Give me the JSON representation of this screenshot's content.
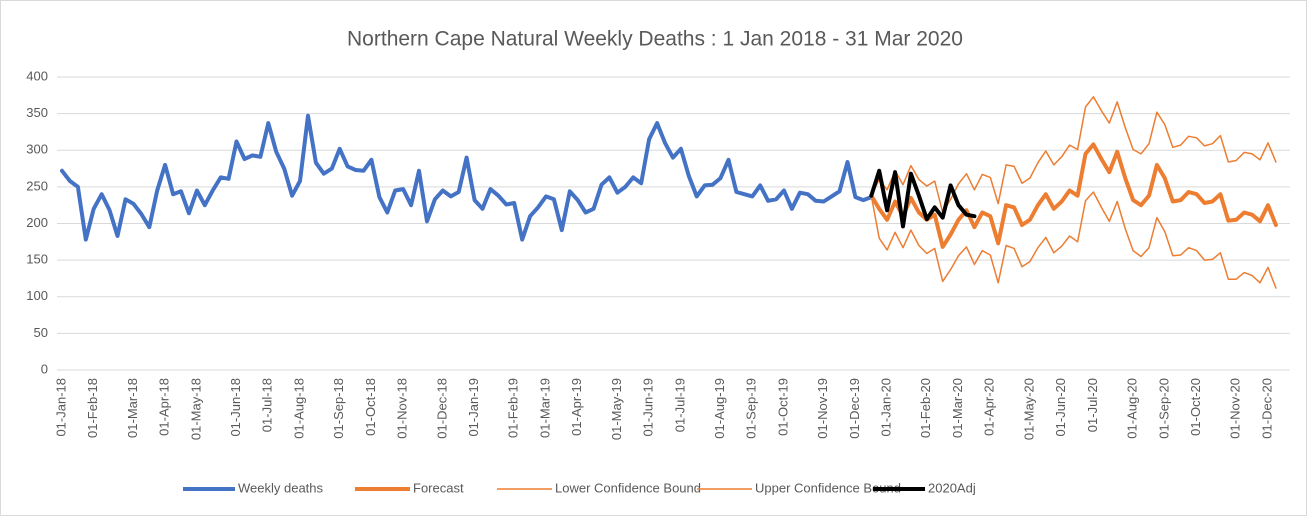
{
  "chart_data": {
    "type": "line",
    "title": "Northern Cape Natural Weekly Deaths : 1 Jan 2018 - 31 Mar 2020",
    "categories": [
      "01-Jan-18",
      null,
      null,
      null,
      "01-Feb-18",
      null,
      null,
      null,
      null,
      "01-Mar-18",
      null,
      null,
      null,
      "01-Apr-18",
      null,
      null,
      null,
      "01-May-18",
      null,
      null,
      null,
      null,
      "01-Jun-18",
      null,
      null,
      null,
      "01-Jul-18",
      null,
      null,
      null,
      "01-Aug-18",
      null,
      null,
      null,
      null,
      "01-Sep-18",
      null,
      null,
      null,
      "01-Oct-18",
      null,
      null,
      null,
      "01-Nov-18",
      null,
      null,
      null,
      null,
      "01-Dec-18",
      null,
      null,
      null,
      "01-Jan-19",
      null,
      null,
      null,
      null,
      "01-Feb-19",
      null,
      null,
      null,
      "01-Mar-19",
      null,
      null,
      null,
      "01-Apr-19",
      null,
      null,
      null,
      null,
      "01-May-19",
      null,
      null,
      null,
      "01-Jun-19",
      null,
      null,
      null,
      "01-Jul-19",
      null,
      null,
      null,
      null,
      "01-Aug-19",
      null,
      null,
      null,
      "01-Sep-19",
      null,
      null,
      null,
      "01-Oct-19",
      null,
      null,
      null,
      null,
      "01-Nov-19",
      null,
      null,
      null,
      "01-Dec-19",
      null,
      null,
      null,
      "01-Jan-20",
      null,
      null,
      null,
      null,
      "01-Feb-20",
      null,
      null,
      null,
      "01-Mar-20",
      null,
      null,
      null,
      "01-Apr-20",
      null,
      null,
      null,
      null,
      "01-May-20",
      null,
      null,
      null,
      "01-Jun-20",
      null,
      null,
      null,
      "01-Jul-20",
      null,
      null,
      null,
      null,
      "01-Aug-20",
      null,
      null,
      null,
      "01-Sep-20",
      null,
      null,
      null,
      "01-Oct-20",
      null,
      null,
      null,
      null,
      "01-Nov-20",
      null,
      null,
      null,
      "01-Dec-20",
      null
    ],
    "series": [
      {
        "name": "Weekly deaths",
        "color": "#4472c4",
        "width": 4,
        "values": [
          272,
          258,
          250,
          178,
          220,
          240,
          218,
          183,
          233,
          227,
          213,
          195,
          245,
          280,
          240,
          244,
          214,
          245,
          225,
          245,
          263,
          261,
          312,
          288,
          293,
          291,
          337,
          298,
          275,
          238,
          258,
          347,
          283,
          268,
          275,
          302,
          278,
          273,
          272,
          287,
          236,
          215,
          245,
          247,
          225,
          272,
          203,
          233,
          245,
          237,
          243,
          290,
          232,
          220,
          247,
          238,
          226,
          228,
          178,
          210,
          222,
          237,
          233,
          191,
          244,
          232,
          215,
          220,
          253,
          263,
          242,
          250,
          263,
          255,
          315,
          337,
          310,
          290,
          302,
          265,
          237,
          252,
          253,
          262,
          287,
          243,
          240,
          237,
          252,
          231,
          233,
          245,
          220,
          242,
          240,
          231,
          230,
          237,
          244,
          284,
          236,
          232,
          236,
          null,
          null,
          null,
          null,
          null,
          null,
          null,
          null,
          null,
          null,
          null,
          null,
          null,
          null,
          null,
          null,
          null,
          null,
          null,
          null,
          null,
          null,
          null,
          null,
          null,
          null,
          null,
          null,
          null,
          null,
          null,
          null,
          null,
          null,
          null,
          null,
          null,
          null,
          null,
          null,
          null,
          null,
          null,
          null,
          null,
          null,
          null,
          null,
          null,
          null,
          null
        ]
      },
      {
        "name": "Forecast",
        "color": "#ed7d31",
        "width": 4,
        "values": [
          null,
          null,
          null,
          null,
          null,
          null,
          null,
          null,
          null,
          null,
          null,
          null,
          null,
          null,
          null,
          null,
          null,
          null,
          null,
          null,
          null,
          null,
          null,
          null,
          null,
          null,
          null,
          null,
          null,
          null,
          null,
          null,
          null,
          null,
          null,
          null,
          null,
          null,
          null,
          null,
          null,
          null,
          null,
          null,
          null,
          null,
          null,
          null,
          null,
          null,
          null,
          null,
          null,
          null,
          null,
          null,
          null,
          null,
          null,
          null,
          null,
          null,
          null,
          null,
          null,
          null,
          null,
          null,
          null,
          null,
          null,
          null,
          null,
          null,
          null,
          null,
          null,
          null,
          null,
          null,
          null,
          null,
          null,
          null,
          null,
          null,
          null,
          null,
          null,
          null,
          null,
          null,
          null,
          null,
          null,
          null,
          null,
          null,
          null,
          null,
          null,
          null,
          238,
          220,
          205,
          230,
          210,
          235,
          215,
          205,
          212,
          168,
          185,
          205,
          218,
          195,
          215,
          210,
          173,
          225,
          222,
          198,
          205,
          225,
          240,
          220,
          230,
          245,
          238,
          295,
          308,
          288,
          270,
          298,
          262,
          232,
          225,
          238,
          280,
          262,
          230,
          232,
          243,
          240,
          228,
          230,
          240,
          204,
          205,
          215,
          212,
          203,
          225,
          198
        ]
      },
      {
        "name": "Lower Confidence Bound",
        "color": "#ed7d31",
        "width": 1.5,
        "values": [
          null,
          null,
          null,
          null,
          null,
          null,
          null,
          null,
          null,
          null,
          null,
          null,
          null,
          null,
          null,
          null,
          null,
          null,
          null,
          null,
          null,
          null,
          null,
          null,
          null,
          null,
          null,
          null,
          null,
          null,
          null,
          null,
          null,
          null,
          null,
          null,
          null,
          null,
          null,
          null,
          null,
          null,
          null,
          null,
          null,
          null,
          null,
          null,
          null,
          null,
          null,
          null,
          null,
          null,
          null,
          null,
          null,
          null,
          null,
          null,
          null,
          null,
          null,
          null,
          null,
          null,
          null,
          null,
          null,
          null,
          null,
          null,
          null,
          null,
          null,
          null,
          null,
          null,
          null,
          null,
          null,
          null,
          null,
          null,
          null,
          null,
          null,
          null,
          null,
          null,
          null,
          null,
          null,
          null,
          null,
          null,
          null,
          null,
          null,
          null,
          null,
          null,
          238,
          180,
          164,
          188,
          167,
          191,
          170,
          159,
          166,
          121,
          137,
          156,
          168,
          144,
          163,
          157,
          119,
          170,
          166,
          141,
          148,
          167,
          181,
          160,
          169,
          183,
          175,
          231,
          243,
          222,
          203,
          230,
          193,
          163,
          155,
          167,
          208,
          189,
          156,
          157,
          167,
          163,
          150,
          151,
          160,
          124,
          124,
          133,
          129,
          119,
          140,
          112
        ]
      },
      {
        "name": "Upper Confidence Bound",
        "color": "#ed7d31",
        "width": 1.5,
        "values": [
          null,
          null,
          null,
          null,
          null,
          null,
          null,
          null,
          null,
          null,
          null,
          null,
          null,
          null,
          null,
          null,
          null,
          null,
          null,
          null,
          null,
          null,
          null,
          null,
          null,
          null,
          null,
          null,
          null,
          null,
          null,
          null,
          null,
          null,
          null,
          null,
          null,
          null,
          null,
          null,
          null,
          null,
          null,
          null,
          null,
          null,
          null,
          null,
          null,
          null,
          null,
          null,
          null,
          null,
          null,
          null,
          null,
          null,
          null,
          null,
          null,
          null,
          null,
          null,
          null,
          null,
          null,
          null,
          null,
          null,
          null,
          null,
          null,
          null,
          null,
          null,
          null,
          null,
          null,
          null,
          null,
          null,
          null,
          null,
          null,
          null,
          null,
          null,
          null,
          null,
          null,
          null,
          null,
          null,
          null,
          null,
          null,
          null,
          null,
          null,
          null,
          null,
          238,
          260,
          246,
          272,
          253,
          279,
          260,
          251,
          258,
          215,
          233,
          254,
          268,
          246,
          267,
          263,
          227,
          280,
          278,
          255,
          262,
          283,
          299,
          280,
          291,
          307,
          301,
          359,
          373,
          354,
          337,
          366,
          331,
          301,
          295,
          309,
          352,
          335,
          304,
          307,
          319,
          317,
          306,
          309,
          320,
          284,
          286,
          297,
          295,
          287,
          310,
          284
        ]
      },
      {
        "name": "2020Adj",
        "color": "#000000",
        "width": 4,
        "values": [
          null,
          null,
          null,
          null,
          null,
          null,
          null,
          null,
          null,
          null,
          null,
          null,
          null,
          null,
          null,
          null,
          null,
          null,
          null,
          null,
          null,
          null,
          null,
          null,
          null,
          null,
          null,
          null,
          null,
          null,
          null,
          null,
          null,
          null,
          null,
          null,
          null,
          null,
          null,
          null,
          null,
          null,
          null,
          null,
          null,
          null,
          null,
          null,
          null,
          null,
          null,
          null,
          null,
          null,
          null,
          null,
          null,
          null,
          null,
          null,
          null,
          null,
          null,
          null,
          null,
          null,
          null,
          null,
          null,
          null,
          null,
          null,
          null,
          null,
          null,
          null,
          null,
          null,
          null,
          null,
          null,
          null,
          null,
          null,
          null,
          null,
          null,
          null,
          null,
          null,
          null,
          null,
          null,
          null,
          null,
          null,
          null,
          null,
          null,
          null,
          null,
          null,
          238,
          272,
          218,
          270,
          196,
          268,
          238,
          206,
          222,
          208,
          252,
          225,
          212,
          210,
          null,
          null,
          null,
          null,
          null,
          null,
          null,
          null,
          null,
          null,
          null,
          null,
          null,
          null,
          null,
          null,
          null,
          null,
          null,
          null,
          null,
          null,
          null,
          null,
          null,
          null,
          null,
          null,
          null,
          null,
          null,
          null,
          null,
          null,
          null,
          null,
          null,
          null
        ]
      }
    ],
    "ylim": [
      0,
      400
    ],
    "yticks": [
      0,
      50,
      100,
      150,
      200,
      250,
      300,
      350,
      400
    ],
    "grid": true,
    "legend": "bottom"
  }
}
